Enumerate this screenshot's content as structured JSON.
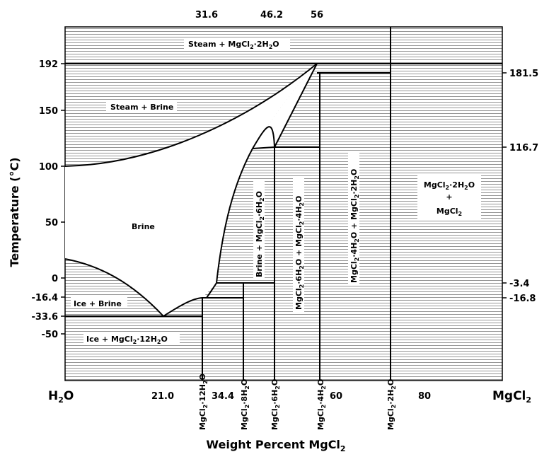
{
  "x_axis": {
    "left_end": {
      "base": "H",
      "sub": "2",
      "tail": "O"
    },
    "right_end": {
      "base": "MgCl",
      "sub": "2",
      "tail": ""
    },
    "title": {
      "base": "Weight Percent MgCl",
      "sub": "2",
      "tail": ""
    },
    "bottom_ticks": [
      {
        "id": "21",
        "text": "21.0"
      },
      {
        "id": "344",
        "text": "34.4"
      },
      {
        "id": "60",
        "text": "60"
      },
      {
        "id": "80",
        "text": "80"
      }
    ],
    "top_ticks": [
      {
        "id": "316",
        "text": "31.6"
      },
      {
        "id": "462",
        "text": "46.2"
      },
      {
        "id": "56",
        "text": "56"
      }
    ],
    "compound_labels": [
      {
        "id": "12h2o",
        "n": "12"
      },
      {
        "id": "8h2o",
        "n": "8"
      },
      {
        "id": "6h2o",
        "n": "6"
      },
      {
        "id": "4h2o",
        "n": "4"
      },
      {
        "id": "2h2o",
        "n": "2"
      }
    ]
  },
  "y_axis": {
    "title": "Temperature (°C)",
    "left_ticks": [
      "192",
      "150",
      "100",
      "50",
      "0",
      "-16.4",
      "-33.6",
      "-50"
    ],
    "right_ticks": [
      "181.5",
      "116.7",
      "-3.4",
      "-16.8"
    ]
  },
  "regions": {
    "steam_hydrate": "Steam + MgCl·2HO",
    "steam_brine": "Steam + Brine",
    "brine": "Brine",
    "ice_brine": "Ice + Brine",
    "ice_hydrate": "Ice + MgCl·12HO",
    "brine_6h2o": "Brine + MgCl·6HO",
    "6h2o_4h2o": "MgCl·6HO + MgCl·4HO",
    "4h2o_2h2o": "MgCl·4HO + MgCl·2HO",
    "2h2o_mgcl2": "MgCl·2HO + MgCl"
  },
  "colors": {
    "line": "#000000",
    "hatch": "#7a7a7a",
    "background": "#ffffff"
  }
}
